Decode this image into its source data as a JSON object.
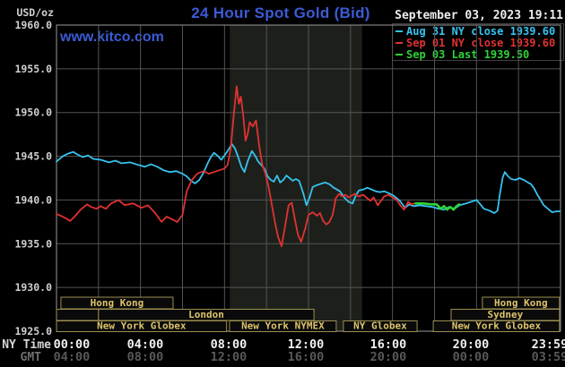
{
  "header": {
    "unit_label": "USD/oz",
    "title": "24 Hour Spot Gold (Bid)",
    "watermark": "www.kitco.com",
    "datetime": "September 03, 2023 19:11"
  },
  "legend": {
    "entries": [
      {
        "label": "Aug 31 NY close 1939.60",
        "color": "#36c3ef"
      },
      {
        "label": "Sep 01 NY close 1939.60",
        "color": "#e13232"
      },
      {
        "label": "Sep 03 Last 1939.50",
        "color": "#2fd435"
      }
    ]
  },
  "axes": {
    "ny_label": "NY Time",
    "gmt_label": "GMT",
    "y_ticks": [
      {
        "label": "1960.0",
        "value": 1960
      },
      {
        "label": "1955.0",
        "value": 1955
      },
      {
        "label": "1950.0",
        "value": 1950
      },
      {
        "label": "1945.0",
        "value": 1945
      },
      {
        "label": "1940.0",
        "value": 1940
      },
      {
        "label": "1935.0",
        "value": 1935
      },
      {
        "label": "1930.0",
        "value": 1930
      },
      {
        "label": "1925.0",
        "value": 1925
      }
    ],
    "x_ticks_ny": [
      "00:00",
      "04:00",
      "08:00",
      "12:00",
      "16:00",
      "20:00",
      "23:59"
    ],
    "x_ticks_gmt": [
      "04:00",
      "08:00",
      "12:00",
      "16:00",
      "20:00",
      "00:00",
      "03:59"
    ]
  },
  "sessions": [
    {
      "row": 0,
      "label": "Hong Kong",
      "start": 0.21,
      "end": 5.55
    },
    {
      "row": 0,
      "label": "Hong Kong",
      "start": 20.28,
      "end": 23.95
    },
    {
      "row": 1,
      "label": "",
      "start": 0.0,
      "end": 2.0
    },
    {
      "row": 1,
      "label": "London",
      "start": 2.0,
      "end": 12.26
    },
    {
      "row": 1,
      "label": "Sydney",
      "start": 18.79,
      "end": 23.95
    },
    {
      "row": 2,
      "label": "New York Globex",
      "start": 0.0,
      "end": 8.1
    },
    {
      "row": 2,
      "label": "New York NYMEX",
      "start": 8.24,
      "end": 13.32
    },
    {
      "row": 2,
      "label": "NY Globex",
      "start": 13.66,
      "end": 17.17
    },
    {
      "row": 2,
      "label": "New York Globex",
      "start": 17.94,
      "end": 23.95
    }
  ],
  "chart_data": {
    "type": "line",
    "title": "24 Hour Spot Gold (Bid)",
    "ylabel": "USD/oz",
    "xlabel_rows": [
      "NY Time",
      "GMT"
    ],
    "ylim": [
      1925,
      1960
    ],
    "xlim_hours": [
      0,
      24
    ],
    "grid": true,
    "legend_position": "top-right",
    "nymex_band_hours": [
      8.25,
      14.55
    ],
    "band_color": "#1d201a",
    "grid_color": "#555555",
    "border_color": "#9a9a9a",
    "session_box_border": "#9c8f52",
    "session_box_fill": "#0a0a0a",
    "series": [
      {
        "name": "Aug 31",
        "color": "#36c3ef",
        "width": 1.8,
        "points": [
          [
            0,
            1944.4
          ],
          [
            0.3,
            1945.0
          ],
          [
            0.55,
            1945.3
          ],
          [
            0.8,
            1945.5
          ],
          [
            1.0,
            1945.2
          ],
          [
            1.25,
            1944.9
          ],
          [
            1.5,
            1945.1
          ],
          [
            1.75,
            1944.7
          ],
          [
            2.1,
            1944.6
          ],
          [
            2.5,
            1944.3
          ],
          [
            2.8,
            1944.5
          ],
          [
            3.1,
            1944.2
          ],
          [
            3.5,
            1944.3
          ],
          [
            3.9,
            1944.0
          ],
          [
            4.2,
            1943.8
          ],
          [
            4.5,
            1944.1
          ],
          [
            4.8,
            1943.8
          ],
          [
            5.1,
            1943.4
          ],
          [
            5.4,
            1943.2
          ],
          [
            5.7,
            1943.3
          ],
          [
            6.0,
            1943.0
          ],
          [
            6.2,
            1942.7
          ],
          [
            6.4,
            1942.2
          ],
          [
            6.6,
            1941.9
          ],
          [
            6.8,
            1942.3
          ],
          [
            7.0,
            1943.1
          ],
          [
            7.2,
            1944.2
          ],
          [
            7.35,
            1944.9
          ],
          [
            7.5,
            1945.4
          ],
          [
            7.7,
            1945.0
          ],
          [
            7.85,
            1944.6
          ],
          [
            8.0,
            1945.1
          ],
          [
            8.15,
            1945.6
          ],
          [
            8.35,
            1946.4
          ],
          [
            8.5,
            1945.9
          ],
          [
            8.65,
            1944.9
          ],
          [
            8.8,
            1943.8
          ],
          [
            8.95,
            1943.2
          ],
          [
            9.1,
            1944.4
          ],
          [
            9.3,
            1945.6
          ],
          [
            9.45,
            1945.1
          ],
          [
            9.6,
            1944.4
          ],
          [
            9.75,
            1944.0
          ],
          [
            9.9,
            1943.6
          ],
          [
            10.05,
            1942.7
          ],
          [
            10.2,
            1942.3
          ],
          [
            10.35,
            1942.1
          ],
          [
            10.5,
            1942.8
          ],
          [
            10.65,
            1942.0
          ],
          [
            10.8,
            1942.3
          ],
          [
            10.95,
            1942.8
          ],
          [
            11.1,
            1942.5
          ],
          [
            11.25,
            1942.2
          ],
          [
            11.4,
            1942.4
          ],
          [
            11.55,
            1942.2
          ],
          [
            11.75,
            1940.8
          ],
          [
            11.9,
            1939.4
          ],
          [
            12.05,
            1940.3
          ],
          [
            12.2,
            1941.5
          ],
          [
            12.4,
            1941.7
          ],
          [
            12.65,
            1941.9
          ],
          [
            12.8,
            1942.0
          ],
          [
            13.0,
            1941.8
          ],
          [
            13.2,
            1941.4
          ],
          [
            13.5,
            1941.0
          ],
          [
            13.7,
            1940.3
          ],
          [
            13.9,
            1939.8
          ],
          [
            14.1,
            1939.6
          ],
          [
            14.25,
            1940.5
          ],
          [
            14.4,
            1941.1
          ],
          [
            14.6,
            1941.2
          ],
          [
            14.8,
            1941.4
          ],
          [
            15.0,
            1941.2
          ],
          [
            15.2,
            1941.0
          ],
          [
            15.4,
            1940.9
          ],
          [
            15.6,
            1941.0
          ],
          [
            15.8,
            1940.8
          ],
          [
            16.05,
            1940.5
          ],
          [
            16.35,
            1939.9
          ],
          [
            16.6,
            1939.1
          ],
          [
            16.8,
            1939.5
          ],
          [
            17.0,
            1939.3
          ],
          [
            17.3,
            1939.4
          ],
          [
            17.6,
            1939.3
          ],
          [
            17.9,
            1939.2
          ],
          [
            18.2,
            1939.0
          ],
          [
            18.45,
            1938.9
          ],
          [
            18.7,
            1939.2
          ],
          [
            18.95,
            1939.0
          ],
          [
            19.2,
            1939.4
          ],
          [
            19.5,
            1939.6
          ],
          [
            19.75,
            1939.8
          ],
          [
            20.0,
            1940.0
          ],
          [
            20.15,
            1939.6
          ],
          [
            20.35,
            1939.0
          ],
          [
            20.6,
            1938.8
          ],
          [
            20.85,
            1938.5
          ],
          [
            21.0,
            1938.8
          ],
          [
            21.1,
            1940.5
          ],
          [
            21.25,
            1942.6
          ],
          [
            21.35,
            1943.2
          ],
          [
            21.5,
            1942.7
          ],
          [
            21.65,
            1942.4
          ],
          [
            21.85,
            1942.3
          ],
          [
            22.05,
            1942.5
          ],
          [
            22.25,
            1942.3
          ],
          [
            22.45,
            1942.0
          ],
          [
            22.6,
            1941.8
          ],
          [
            22.75,
            1941.3
          ],
          [
            22.9,
            1940.6
          ],
          [
            23.05,
            1940.0
          ],
          [
            23.2,
            1939.4
          ],
          [
            23.4,
            1939.0
          ],
          [
            23.6,
            1938.6
          ],
          [
            23.8,
            1938.7
          ],
          [
            23.98,
            1938.7
          ]
        ]
      },
      {
        "name": "Sep 01",
        "color": "#e13232",
        "width": 1.8,
        "points": [
          [
            0,
            1938.4
          ],
          [
            0.2,
            1938.2
          ],
          [
            0.45,
            1937.9
          ],
          [
            0.65,
            1937.6
          ],
          [
            0.9,
            1938.2
          ],
          [
            1.15,
            1938.9
          ],
          [
            1.45,
            1939.5
          ],
          [
            1.65,
            1939.2
          ],
          [
            1.9,
            1939.0
          ],
          [
            2.1,
            1939.3
          ],
          [
            2.35,
            1939.0
          ],
          [
            2.6,
            1939.6
          ],
          [
            2.95,
            1940.0
          ],
          [
            3.25,
            1939.4
          ],
          [
            3.65,
            1939.6
          ],
          [
            4.05,
            1939.1
          ],
          [
            4.35,
            1939.4
          ],
          [
            4.7,
            1938.5
          ],
          [
            5.0,
            1937.5
          ],
          [
            5.25,
            1938.1
          ],
          [
            5.5,
            1937.8
          ],
          [
            5.75,
            1937.5
          ],
          [
            6.0,
            1938.3
          ],
          [
            6.2,
            1941.0
          ],
          [
            6.45,
            1942.3
          ],
          [
            6.7,
            1943.0
          ],
          [
            7.0,
            1943.3
          ],
          [
            7.25,
            1943.0
          ],
          [
            7.5,
            1943.2
          ],
          [
            7.75,
            1943.4
          ],
          [
            8.0,
            1943.6
          ],
          [
            8.15,
            1944.0
          ],
          [
            8.3,
            1946.0
          ],
          [
            8.45,
            1950.0
          ],
          [
            8.58,
            1953.0
          ],
          [
            8.68,
            1951.0
          ],
          [
            8.78,
            1951.8
          ],
          [
            8.9,
            1949.5
          ],
          [
            9.0,
            1946.8
          ],
          [
            9.1,
            1947.5
          ],
          [
            9.2,
            1948.9
          ],
          [
            9.35,
            1948.4
          ],
          [
            9.5,
            1949.1
          ],
          [
            9.65,
            1946.2
          ],
          [
            9.8,
            1944.0
          ],
          [
            9.95,
            1943.0
          ],
          [
            10.1,
            1941.5
          ],
          [
            10.25,
            1939.5
          ],
          [
            10.4,
            1937.5
          ],
          [
            10.55,
            1935.8
          ],
          [
            10.72,
            1934.7
          ],
          [
            10.9,
            1937.2
          ],
          [
            11.05,
            1939.4
          ],
          [
            11.2,
            1939.7
          ],
          [
            11.35,
            1937.8
          ],
          [
            11.5,
            1936.0
          ],
          [
            11.65,
            1935.2
          ],
          [
            11.85,
            1936.8
          ],
          [
            12.0,
            1938.3
          ],
          [
            12.2,
            1938.6
          ],
          [
            12.4,
            1938.2
          ],
          [
            12.55,
            1938.5
          ],
          [
            12.7,
            1937.6
          ],
          [
            12.85,
            1937.2
          ],
          [
            13.0,
            1937.5
          ],
          [
            13.15,
            1938.3
          ],
          [
            13.3,
            1940.2
          ],
          [
            13.45,
            1940.7
          ],
          [
            13.6,
            1940.4
          ],
          [
            13.75,
            1940.6
          ],
          [
            13.9,
            1940.3
          ],
          [
            14.05,
            1940.5
          ],
          [
            14.2,
            1940.7
          ],
          [
            14.4,
            1940.4
          ],
          [
            14.6,
            1940.6
          ],
          [
            14.8,
            1940.2
          ],
          [
            14.95,
            1939.9
          ],
          [
            15.1,
            1940.3
          ],
          [
            15.3,
            1939.4
          ],
          [
            15.45,
            1939.9
          ],
          [
            15.6,
            1940.4
          ],
          [
            15.8,
            1940.6
          ],
          [
            16.0,
            1940.3
          ],
          [
            16.2,
            1940.0
          ],
          [
            16.4,
            1939.3
          ],
          [
            16.55,
            1938.9
          ],
          [
            16.75,
            1939.8
          ],
          [
            16.9,
            1939.5
          ],
          [
            17.05,
            1939.6
          ]
        ]
      },
      {
        "name": "Sep 03",
        "color": "#2fd435",
        "width": 2.6,
        "points": [
          [
            17.1,
            1939.6
          ],
          [
            17.5,
            1939.6
          ],
          [
            17.85,
            1939.5
          ],
          [
            18.1,
            1939.5
          ],
          [
            18.3,
            1939.0
          ],
          [
            18.45,
            1939.3
          ],
          [
            18.6,
            1938.9
          ],
          [
            18.75,
            1939.2
          ],
          [
            18.9,
            1938.9
          ],
          [
            19.05,
            1939.3
          ],
          [
            19.18,
            1939.5
          ]
        ]
      }
    ]
  }
}
